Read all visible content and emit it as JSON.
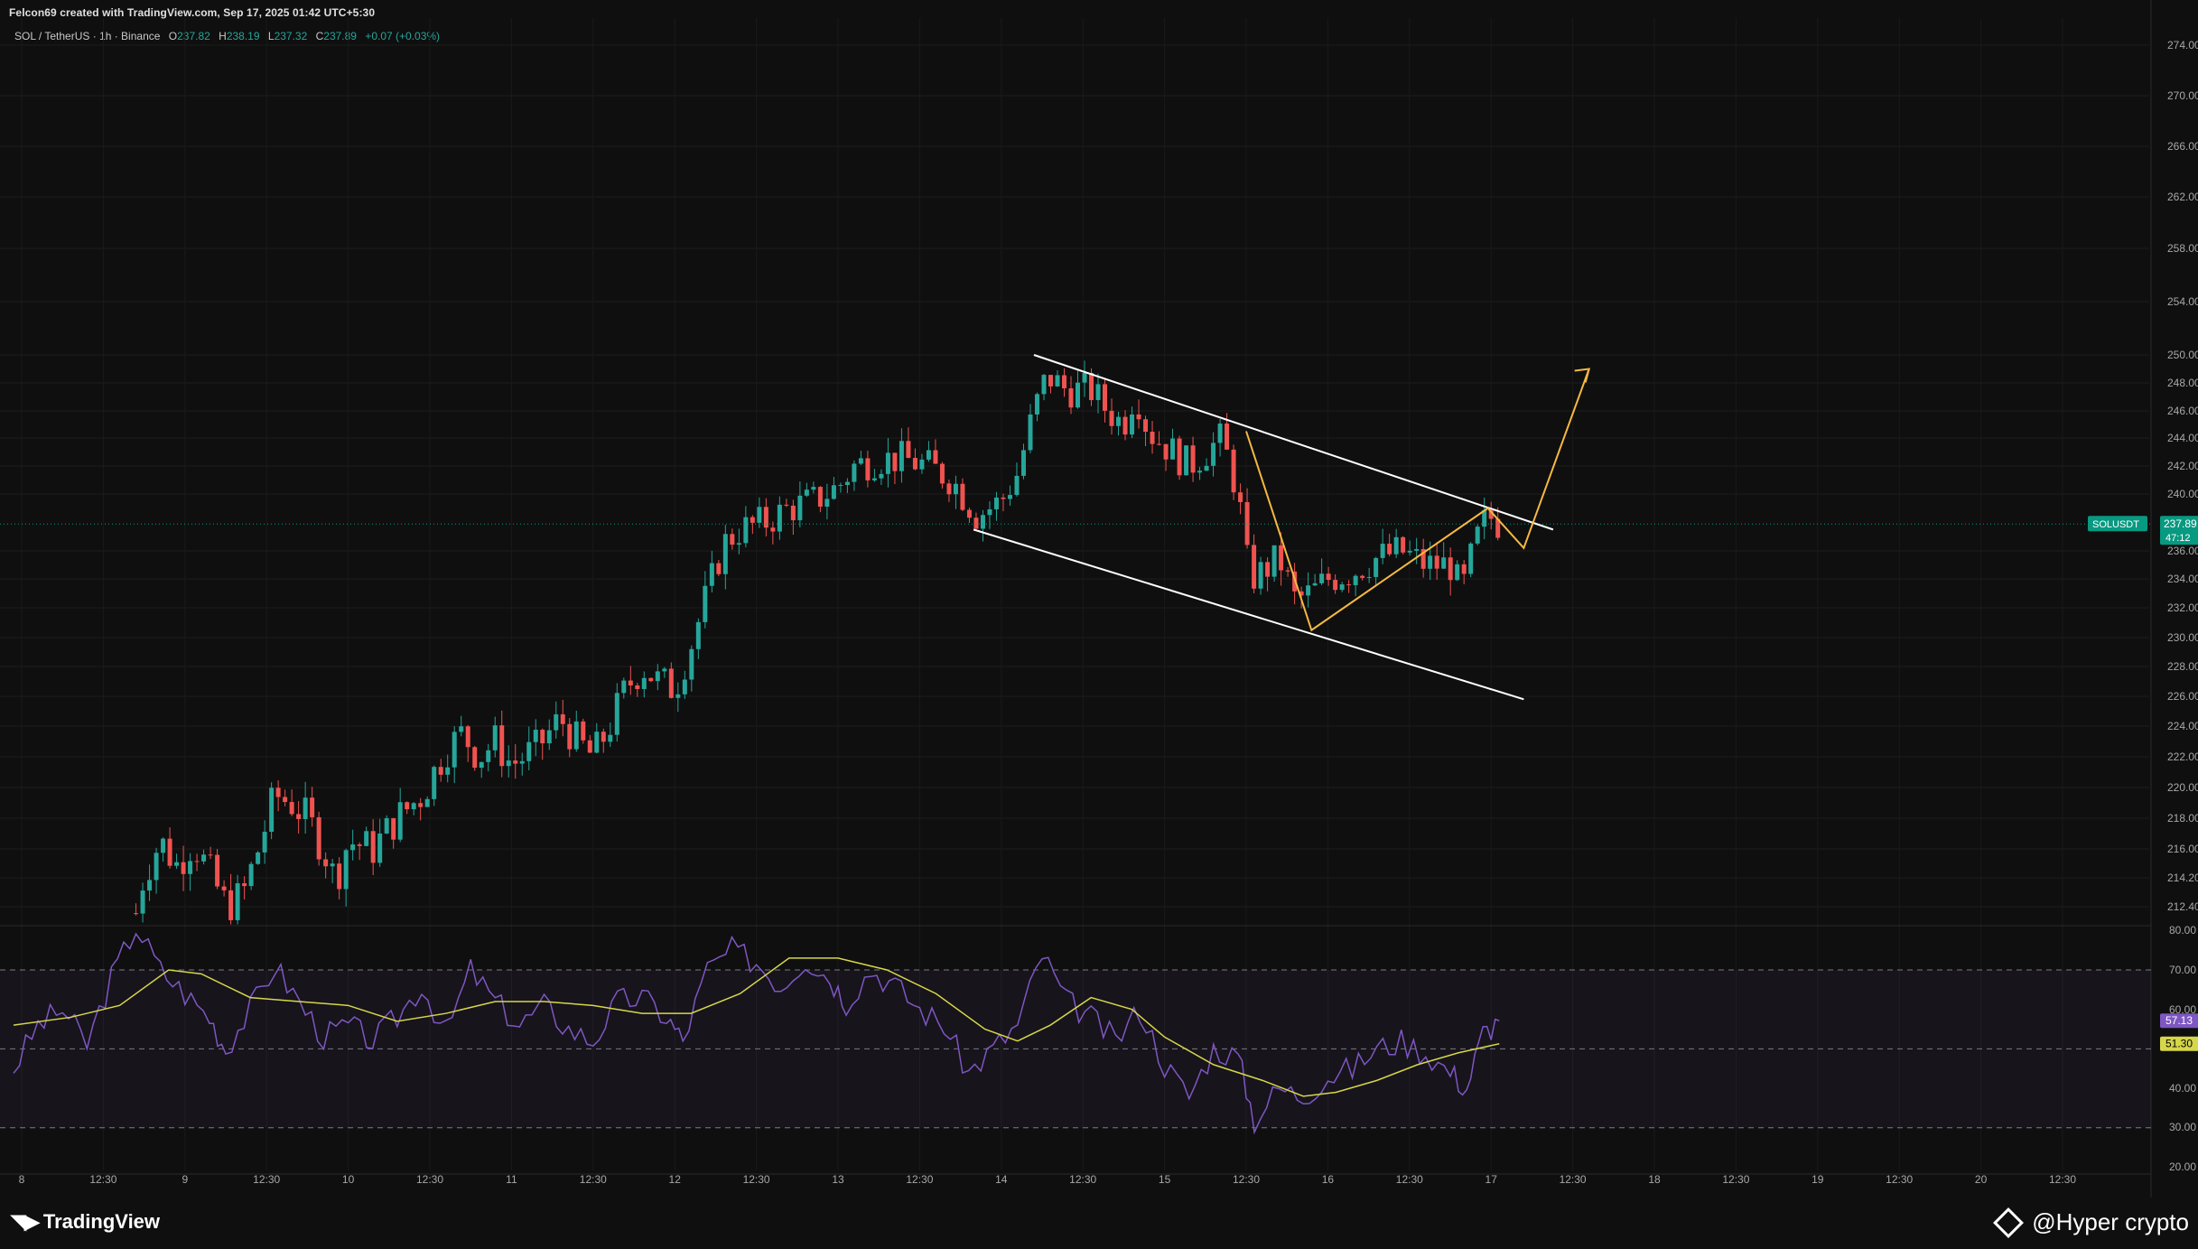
{
  "header": {
    "created_by": "Felcon69 created with TradingView.com, Sep 17, 2025 01:42 UTC+5:30"
  },
  "legend": {
    "symbol": "SOL / TetherUS · 1h · Binance",
    "o_label": "O",
    "o": "237.82",
    "h_label": "H",
    "h": "238.19",
    "l_label": "L",
    "l": "237.32",
    "c_label": "C",
    "c": "237.89",
    "change": "+0.07 (+0.03%)"
  },
  "price_badge": {
    "symbol": "SOLUSDT",
    "price": "237.89",
    "countdown": "47:12"
  },
  "rsi_badges": {
    "rsi": "57.13",
    "ma": "51.30"
  },
  "footer": {
    "brand": "TradingView",
    "credit": "@Hyper  crypto"
  },
  "colors": {
    "up": "#26a69a",
    "down": "#ef5350",
    "rsi": "#7e57c2",
    "rsi_ma": "#d6d64a",
    "annotation": "#f5b942",
    "channel": "#ffffff",
    "badge": "#089981"
  },
  "chart_data": [
    {
      "type": "candlestick",
      "title": "SOL / TetherUS · 1h · Binance",
      "price_axis_ticks": [
        "274.00",
        "270.00",
        "266.00",
        "262.00",
        "258.00",
        "254.00",
        "250.00",
        "248.00",
        "246.00",
        "244.00",
        "242.00",
        "240.00",
        "236.00",
        "234.00",
        "232.00",
        "230.00",
        "228.00",
        "226.00",
        "224.00",
        "222.00",
        "220.00",
        "218.00",
        "216.00",
        "214.20",
        "212.40"
      ],
      "time_axis_ticks": [
        "8",
        "12:30",
        "9",
        "12:30",
        "10",
        "12:30",
        "11",
        "12:30",
        "12",
        "12:30",
        "13",
        "12:30",
        "14",
        "12:30",
        "15",
        "12:30",
        "16",
        "12:30",
        "17",
        "12:30",
        "18",
        "12:30",
        "19",
        "12:30",
        "20",
        "12:30"
      ],
      "last_price": 237.89,
      "price_path": [
        [
          8.7,
          212.0
        ],
        [
          8.75,
          214.5
        ],
        [
          8.85,
          216.5
        ],
        [
          8.95,
          215.0
        ],
        [
          9.05,
          216.5
        ],
        [
          9.15,
          214.5
        ],
        [
          9.25,
          212.5
        ],
        [
          9.35,
          213.0
        ],
        [
          9.45,
          216.0
        ],
        [
          9.55,
          219.5
        ],
        [
          9.65,
          219.0
        ],
        [
          9.75,
          218.0
        ],
        [
          9.85,
          216.0
        ],
        [
          9.92,
          214.0
        ],
        [
          10.0,
          216.5
        ],
        [
          10.15,
          216.0
        ],
        [
          10.3,
          218.0
        ],
        [
          10.45,
          219.5
        ],
        [
          10.6,
          222.5
        ],
        [
          10.7,
          223.5
        ],
        [
          10.8,
          222.0
        ],
        [
          10.9,
          223.0
        ],
        [
          11.0,
          221.5
        ],
        [
          11.15,
          222.5
        ],
        [
          11.3,
          224.5
        ],
        [
          11.4,
          223.0
        ],
        [
          11.5,
          222.0
        ],
        [
          11.6,
          224.0
        ],
        [
          11.7,
          226.5
        ],
        [
          11.8,
          228.0
        ],
        [
          11.9,
          227.0
        ],
        [
          12.0,
          226.5
        ],
        [
          12.1,
          229.5
        ],
        [
          12.2,
          233.0
        ],
        [
          12.3,
          236.5
        ],
        [
          12.4,
          237.5
        ],
        [
          12.55,
          238.0
        ],
        [
          12.7,
          239.0
        ],
        [
          12.85,
          239.5
        ],
        [
          13.0,
          240.5
        ],
        [
          13.1,
          242.0
        ],
        [
          13.25,
          242.5
        ],
        [
          13.4,
          242.5
        ],
        [
          13.55,
          242.0
        ],
        [
          13.7,
          241.0
        ],
        [
          13.85,
          238.5
        ],
        [
          14.0,
          239.5
        ],
        [
          14.1,
          241.5
        ],
        [
          14.2,
          246.0
        ],
        [
          14.28,
          248.5
        ],
        [
          14.4,
          247.5
        ],
        [
          14.55,
          247.5
        ],
        [
          14.65,
          246.0
        ],
        [
          14.75,
          245.0
        ],
        [
          14.82,
          247.5
        ],
        [
          14.9,
          244.5
        ],
        [
          15.05,
          243.0
        ],
        [
          15.15,
          242.0
        ],
        [
          15.25,
          243.0
        ],
        [
          15.35,
          244.0
        ],
        [
          15.45,
          240.0
        ],
        [
          15.52,
          234.0
        ],
        [
          15.6,
          234.5
        ],
        [
          15.7,
          235.5
        ],
        [
          15.8,
          232.5
        ],
        [
          15.9,
          233.0
        ],
        [
          16.0,
          234.0
        ],
        [
          16.15,
          234.5
        ],
        [
          16.3,
          235.5
        ],
        [
          16.45,
          236.0
        ],
        [
          16.6,
          235.0
        ],
        [
          16.75,
          235.0
        ],
        [
          16.82,
          233.0
        ],
        [
          16.9,
          236.5
        ],
        [
          16.98,
          238.5
        ],
        [
          17.05,
          237.9
        ]
      ],
      "annotations": {
        "channel_upper": [
          [
            14.2,
            250.0
          ],
          [
            17.38,
            237.5
          ]
        ],
        "channel_lower": [
          [
            13.83,
            237.5
          ],
          [
            17.2,
            225.8
          ]
        ],
        "zigzag": [
          [
            15.5,
            244.5
          ],
          [
            15.9,
            230.5
          ],
          [
            16.98,
            239.0
          ],
          [
            17.2,
            236.2
          ],
          [
            17.6,
            249.0
          ]
        ]
      }
    },
    {
      "type": "line",
      "title": "RSI",
      "y_axis_ticks": [
        "80.00",
        "70.00",
        "60.00",
        "40.00",
        "30.00",
        "20.00"
      ],
      "bands": {
        "upper": 70,
        "middle": 50,
        "lower": 30
      },
      "last_rsi": 57.13,
      "last_ma": 51.3,
      "rsi_path": [
        [
          7.95,
          45
        ],
        [
          8.1,
          56
        ],
        [
          8.25,
          60
        ],
        [
          8.4,
          51
        ],
        [
          8.55,
          68
        ],
        [
          8.7,
          81
        ],
        [
          8.85,
          70
        ],
        [
          9.0,
          64
        ],
        [
          9.15,
          58
        ],
        [
          9.25,
          50
        ],
        [
          9.4,
          60
        ],
        [
          9.55,
          71
        ],
        [
          9.7,
          62
        ],
        [
          9.85,
          53
        ],
        [
          10.0,
          56
        ],
        [
          10.15,
          52
        ],
        [
          10.3,
          58
        ],
        [
          10.45,
          66
        ],
        [
          10.6,
          54
        ],
        [
          10.75,
          70
        ],
        [
          10.9,
          62
        ],
        [
          11.05,
          56
        ],
        [
          11.2,
          61
        ],
        [
          11.35,
          55
        ],
        [
          11.5,
          52
        ],
        [
          11.65,
          62
        ],
        [
          11.8,
          63
        ],
        [
          11.95,
          58
        ],
        [
          12.05,
          52
        ],
        [
          12.2,
          70
        ],
        [
          12.35,
          75
        ],
        [
          12.5,
          72
        ],
        [
          12.65,
          66
        ],
        [
          12.8,
          73
        ],
        [
          12.95,
          68
        ],
        [
          13.05,
          62
        ],
        [
          13.2,
          70
        ],
        [
          13.35,
          66
        ],
        [
          13.5,
          60
        ],
        [
          13.65,
          56
        ],
        [
          13.8,
          44
        ],
        [
          13.95,
          50
        ],
        [
          14.1,
          56
        ],
        [
          14.25,
          74
        ],
        [
          14.4,
          62
        ],
        [
          14.55,
          58
        ],
        [
          14.7,
          52
        ],
        [
          14.85,
          60
        ],
        [
          15.0,
          46
        ],
        [
          15.15,
          38
        ],
        [
          15.3,
          50
        ],
        [
          15.45,
          48
        ],
        [
          15.55,
          32
        ],
        [
          15.7,
          40
        ],
        [
          15.85,
          38
        ],
        [
          16.0,
          43
        ],
        [
          16.15,
          45
        ],
        [
          16.3,
          50
        ],
        [
          16.45,
          52
        ],
        [
          16.6,
          49
        ],
        [
          16.75,
          44
        ],
        [
          16.85,
          40
        ],
        [
          16.95,
          54
        ],
        [
          17.05,
          57.13
        ]
      ],
      "ma_path": [
        [
          7.95,
          56
        ],
        [
          8.3,
          58
        ],
        [
          8.6,
          61
        ],
        [
          8.9,
          70
        ],
        [
          9.1,
          69
        ],
        [
          9.4,
          63
        ],
        [
          9.7,
          62
        ],
        [
          10.0,
          61
        ],
        [
          10.3,
          57
        ],
        [
          10.6,
          59
        ],
        [
          10.9,
          62
        ],
        [
          11.2,
          62
        ],
        [
          11.5,
          61
        ],
        [
          11.8,
          59
        ],
        [
          12.1,
          59
        ],
        [
          12.4,
          64
        ],
        [
          12.7,
          73
        ],
        [
          13.0,
          73
        ],
        [
          13.3,
          70
        ],
        [
          13.6,
          64
        ],
        [
          13.9,
          55
        ],
        [
          14.1,
          52
        ],
        [
          14.3,
          56
        ],
        [
          14.55,
          63
        ],
        [
          14.8,
          60
        ],
        [
          15.0,
          53
        ],
        [
          15.3,
          46
        ],
        [
          15.6,
          42
        ],
        [
          15.85,
          38
        ],
        [
          16.05,
          39
        ],
        [
          16.3,
          42
        ],
        [
          16.55,
          46
        ],
        [
          16.8,
          49
        ],
        [
          17.05,
          51.3
        ]
      ]
    }
  ]
}
